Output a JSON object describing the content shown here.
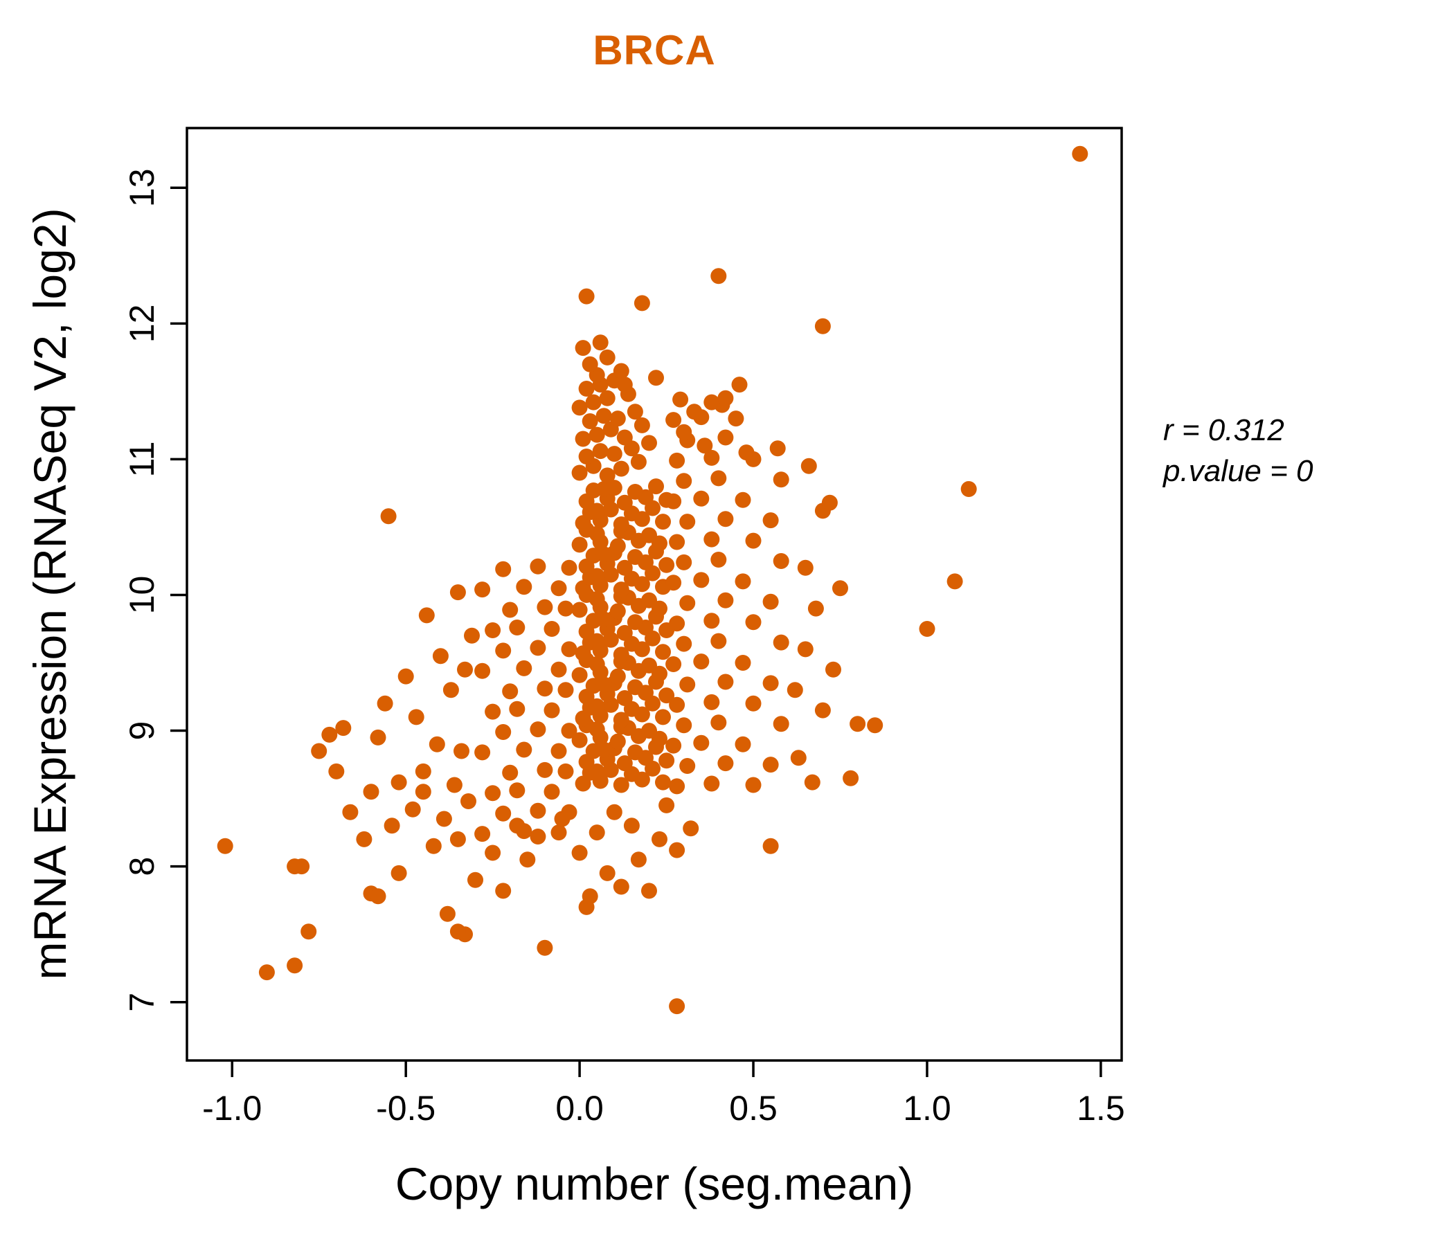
{
  "figure": {
    "title": "BRCA",
    "accent_color": "#D95F02",
    "annotation": {
      "line1": "r = 0.312",
      "line2": "p.value = 0"
    }
  },
  "chart_data": {
    "type": "scatter",
    "title": "BRCA",
    "xlabel": "Copy number (seg.mean)",
    "ylabel": "mRNA Expression (RNASeq V2, log2)",
    "xlim": [
      -1.13,
      1.56
    ],
    "ylim": [
      6.57,
      13.44
    ],
    "x_ticks": [
      -1.0,
      -0.5,
      0.0,
      0.5,
      1.0,
      1.5
    ],
    "y_ticks": [
      7,
      8,
      9,
      10,
      11,
      12,
      13
    ],
    "grid": false,
    "legend": "none",
    "point_color": "#D95F02",
    "stats": {
      "r": 0.312,
      "p_value": 0
    },
    "points": [
      [
        0.01,
        8.61
      ],
      [
        0.06,
        8.63
      ],
      [
        0.12,
        8.6
      ],
      [
        0.18,
        8.64
      ],
      [
        0.24,
        8.62
      ],
      [
        0.03,
        8.69
      ],
      [
        0.09,
        8.71
      ],
      [
        0.15,
        8.68
      ],
      [
        0.21,
        8.72
      ],
      [
        0.05,
        8.7
      ],
      [
        0.02,
        8.77
      ],
      [
        0.08,
        8.79
      ],
      [
        0.13,
        8.76
      ],
      [
        0.19,
        8.8
      ],
      [
        0.25,
        8.78
      ],
      [
        0.04,
        8.85
      ],
      [
        0.1,
        8.87
      ],
      [
        0.16,
        8.84
      ],
      [
        0.22,
        8.88
      ],
      [
        0.07,
        8.86
      ],
      [
        0.0,
        8.93
      ],
      [
        0.06,
        8.95
      ],
      [
        0.11,
        8.92
      ],
      [
        0.17,
        8.96
      ],
      [
        0.23,
        8.94
      ],
      [
        0.05,
        9.01
      ],
      [
        0.12,
        9.03
      ],
      [
        0.2,
        9.0
      ],
      [
        0.02,
        9.04
      ],
      [
        0.14,
        9.02
      ],
      [
        0.01,
        9.09
      ],
      [
        0.06,
        9.11
      ],
      [
        0.12,
        9.08
      ],
      [
        0.18,
        9.12
      ],
      [
        0.24,
        9.1
      ],
      [
        0.03,
        9.17
      ],
      [
        0.09,
        9.19
      ],
      [
        0.15,
        9.16
      ],
      [
        0.21,
        9.2
      ],
      [
        0.05,
        9.18
      ],
      [
        0.02,
        9.25
      ],
      [
        0.08,
        9.27
      ],
      [
        0.13,
        9.24
      ],
      [
        0.19,
        9.28
      ],
      [
        0.25,
        9.26
      ],
      [
        0.04,
        9.33
      ],
      [
        0.1,
        9.35
      ],
      [
        0.16,
        9.32
      ],
      [
        0.22,
        9.36
      ],
      [
        0.07,
        9.34
      ],
      [
        0.0,
        9.41
      ],
      [
        0.06,
        9.43
      ],
      [
        0.11,
        9.4
      ],
      [
        0.17,
        9.44
      ],
      [
        0.23,
        9.42
      ],
      [
        0.05,
        9.49
      ],
      [
        0.12,
        9.51
      ],
      [
        0.2,
        9.48
      ],
      [
        0.02,
        9.52
      ],
      [
        0.14,
        9.5
      ],
      [
        0.01,
        9.57
      ],
      [
        0.06,
        9.59
      ],
      [
        0.12,
        9.56
      ],
      [
        0.18,
        9.6
      ],
      [
        0.24,
        9.58
      ],
      [
        0.03,
        9.65
      ],
      [
        0.09,
        9.67
      ],
      [
        0.15,
        9.64
      ],
      [
        0.21,
        9.68
      ],
      [
        0.05,
        9.66
      ],
      [
        0.02,
        9.73
      ],
      [
        0.08,
        9.75
      ],
      [
        0.13,
        9.72
      ],
      [
        0.19,
        9.76
      ],
      [
        0.25,
        9.74
      ],
      [
        0.04,
        9.81
      ],
      [
        0.1,
        9.83
      ],
      [
        0.16,
        9.8
      ],
      [
        0.22,
        9.84
      ],
      [
        0.07,
        9.82
      ],
      [
        0.0,
        9.89
      ],
      [
        0.06,
        9.91
      ],
      [
        0.11,
        9.88
      ],
      [
        0.17,
        9.92
      ],
      [
        0.23,
        9.9
      ],
      [
        0.05,
        9.97
      ],
      [
        0.12,
        9.99
      ],
      [
        0.2,
        9.96
      ],
      [
        0.02,
        10.0
      ],
      [
        0.14,
        9.98
      ],
      [
        0.01,
        10.05
      ],
      [
        0.06,
        10.07
      ],
      [
        0.12,
        10.04
      ],
      [
        0.18,
        10.08
      ],
      [
        0.24,
        10.06
      ],
      [
        0.03,
        10.13
      ],
      [
        0.09,
        10.15
      ],
      [
        0.15,
        10.12
      ],
      [
        0.21,
        10.16
      ],
      [
        0.05,
        10.14
      ],
      [
        0.02,
        10.21
      ],
      [
        0.08,
        10.23
      ],
      [
        0.13,
        10.2
      ],
      [
        0.19,
        10.24
      ],
      [
        0.25,
        10.22
      ],
      [
        0.04,
        10.29
      ],
      [
        0.1,
        10.31
      ],
      [
        0.16,
        10.28
      ],
      [
        0.22,
        10.32
      ],
      [
        0.07,
        10.3
      ],
      [
        0.0,
        10.37
      ],
      [
        0.06,
        10.39
      ],
      [
        0.11,
        10.36
      ],
      [
        0.17,
        10.4
      ],
      [
        0.23,
        10.38
      ],
      [
        0.05,
        10.45
      ],
      [
        0.12,
        10.47
      ],
      [
        0.2,
        10.44
      ],
      [
        0.02,
        10.48
      ],
      [
        0.14,
        10.46
      ],
      [
        0.01,
        10.53
      ],
      [
        0.06,
        10.55
      ],
      [
        0.12,
        10.52
      ],
      [
        0.18,
        10.56
      ],
      [
        0.24,
        10.54
      ],
      [
        0.03,
        10.61
      ],
      [
        0.09,
        10.63
      ],
      [
        0.15,
        10.6
      ],
      [
        0.21,
        10.64
      ],
      [
        0.05,
        10.62
      ],
      [
        0.02,
        10.69
      ],
      [
        0.08,
        10.71
      ],
      [
        0.13,
        10.68
      ],
      [
        0.19,
        10.72
      ],
      [
        0.25,
        10.7
      ],
      [
        0.04,
        10.77
      ],
      [
        0.1,
        10.79
      ],
      [
        0.16,
        10.76
      ],
      [
        0.22,
        10.8
      ],
      [
        0.07,
        10.78
      ],
      [
        -0.28,
        8.24
      ],
      [
        -0.16,
        8.26
      ],
      [
        -0.06,
        8.25
      ],
      [
        -0.22,
        8.39
      ],
      [
        -0.12,
        8.41
      ],
      [
        -0.03,
        8.4
      ],
      [
        -0.25,
        8.54
      ],
      [
        -0.18,
        8.56
      ],
      [
        -0.08,
        8.55
      ],
      [
        -0.2,
        8.69
      ],
      [
        -0.1,
        8.71
      ],
      [
        -0.04,
        8.7
      ],
      [
        -0.28,
        8.84
      ],
      [
        -0.16,
        8.86
      ],
      [
        -0.06,
        8.85
      ],
      [
        -0.22,
        8.99
      ],
      [
        -0.12,
        9.01
      ],
      [
        -0.03,
        9.0
      ],
      [
        -0.25,
        9.14
      ],
      [
        -0.18,
        9.16
      ],
      [
        -0.08,
        9.15
      ],
      [
        -0.2,
        9.29
      ],
      [
        -0.1,
        9.31
      ],
      [
        -0.04,
        9.3
      ],
      [
        -0.28,
        9.44
      ],
      [
        -0.16,
        9.46
      ],
      [
        -0.06,
        9.45
      ],
      [
        -0.22,
        9.59
      ],
      [
        -0.12,
        9.61
      ],
      [
        -0.03,
        9.6
      ],
      [
        -0.25,
        9.74
      ],
      [
        -0.18,
        9.76
      ],
      [
        -0.08,
        9.75
      ],
      [
        -0.2,
        9.89
      ],
      [
        -0.1,
        9.91
      ],
      [
        -0.04,
        9.9
      ],
      [
        -0.28,
        10.04
      ],
      [
        -0.16,
        10.06
      ],
      [
        -0.06,
        10.05
      ],
      [
        -0.22,
        10.19
      ],
      [
        -0.12,
        10.21
      ],
      [
        -0.03,
        10.2
      ],
      [
        0.28,
        8.59
      ],
      [
        0.38,
        8.61
      ],
      [
        0.5,
        8.6
      ],
      [
        0.31,
        8.74
      ],
      [
        0.42,
        8.76
      ],
      [
        0.55,
        8.75
      ],
      [
        0.27,
        8.89
      ],
      [
        0.35,
        8.91
      ],
      [
        0.47,
        8.9
      ],
      [
        0.3,
        9.04
      ],
      [
        0.4,
        9.06
      ],
      [
        0.58,
        9.05
      ],
      [
        0.28,
        9.19
      ],
      [
        0.38,
        9.21
      ],
      [
        0.5,
        9.2
      ],
      [
        0.31,
        9.34
      ],
      [
        0.42,
        9.36
      ],
      [
        0.55,
        9.35
      ],
      [
        0.27,
        9.49
      ],
      [
        0.35,
        9.51
      ],
      [
        0.47,
        9.5
      ],
      [
        0.3,
        9.64
      ],
      [
        0.4,
        9.66
      ],
      [
        0.58,
        9.65
      ],
      [
        0.28,
        9.79
      ],
      [
        0.38,
        9.81
      ],
      [
        0.5,
        9.8
      ],
      [
        0.31,
        9.94
      ],
      [
        0.42,
        9.96
      ],
      [
        0.55,
        9.95
      ],
      [
        0.27,
        10.09
      ],
      [
        0.35,
        10.11
      ],
      [
        0.47,
        10.1
      ],
      [
        0.3,
        10.24
      ],
      [
        0.4,
        10.26
      ],
      [
        0.58,
        10.25
      ],
      [
        0.28,
        10.39
      ],
      [
        0.38,
        10.41
      ],
      [
        0.5,
        10.4
      ],
      [
        0.31,
        10.54
      ],
      [
        0.42,
        10.56
      ],
      [
        0.55,
        10.55
      ],
      [
        0.27,
        10.69
      ],
      [
        0.35,
        10.71
      ],
      [
        0.47,
        10.7
      ],
      [
        0.3,
        10.84
      ],
      [
        0.4,
        10.86
      ],
      [
        0.58,
        10.85
      ],
      [
        0.28,
        10.99
      ],
      [
        0.38,
        11.01
      ],
      [
        0.5,
        11.0
      ],
      [
        0.31,
        11.14
      ],
      [
        0.42,
        11.16
      ],
      [
        0.27,
        11.29
      ],
      [
        0.35,
        11.31
      ],
      [
        0.29,
        11.44
      ],
      [
        0.41,
        11.4
      ],
      [
        -0.82,
        8.0
      ],
      [
        -0.78,
        7.52
      ],
      [
        -0.75,
        8.85
      ],
      [
        -0.72,
        8.97
      ],
      [
        -0.7,
        8.7
      ],
      [
        -0.68,
        9.02
      ],
      [
        -0.66,
        8.4
      ],
      [
        -0.62,
        8.2
      ],
      [
        -0.6,
        7.8
      ],
      [
        -0.58,
        8.95
      ],
      [
        -0.56,
        9.2
      ],
      [
        -0.55,
        10.58
      ],
      [
        -0.54,
        8.3
      ],
      [
        -0.52,
        8.62
      ],
      [
        -0.5,
        9.4
      ],
      [
        -0.48,
        8.42
      ],
      [
        -0.47,
        9.1
      ],
      [
        -0.45,
        8.55
      ],
      [
        -0.44,
        9.85
      ],
      [
        -0.42,
        8.15
      ],
      [
        -0.41,
        8.9
      ],
      [
        -0.4,
        9.55
      ],
      [
        -0.39,
        8.35
      ],
      [
        -0.38,
        7.65
      ],
      [
        -0.37,
        9.3
      ],
      [
        -0.36,
        8.6
      ],
      [
        -0.35,
        10.02
      ],
      [
        -0.34,
        8.85
      ],
      [
        -0.33,
        9.45
      ],
      [
        -0.33,
        7.5
      ],
      [
        -0.32,
        8.48
      ],
      [
        -0.31,
        9.7
      ],
      [
        -0.45,
        8.7
      ],
      [
        -0.52,
        7.95
      ],
      [
        -0.6,
        8.55
      ],
      [
        -0.35,
        8.2
      ],
      [
        0.0,
        10.9
      ],
      [
        0.04,
        10.95
      ],
      [
        0.08,
        10.88
      ],
      [
        0.12,
        10.93
      ],
      [
        0.17,
        10.98
      ],
      [
        0.02,
        11.02
      ],
      [
        0.06,
        11.06
      ],
      [
        0.1,
        11.04
      ],
      [
        0.15,
        11.08
      ],
      [
        0.2,
        11.12
      ],
      [
        0.01,
        11.15
      ],
      [
        0.05,
        11.18
      ],
      [
        0.09,
        11.22
      ],
      [
        0.13,
        11.16
      ],
      [
        0.18,
        11.25
      ],
      [
        0.03,
        11.28
      ],
      [
        0.07,
        11.32
      ],
      [
        0.11,
        11.3
      ],
      [
        0.16,
        11.35
      ],
      [
        0.0,
        11.38
      ],
      [
        0.04,
        11.42
      ],
      [
        0.08,
        11.45
      ],
      [
        0.14,
        11.48
      ],
      [
        0.02,
        11.52
      ],
      [
        0.06,
        11.55
      ],
      [
        0.1,
        11.58
      ],
      [
        0.05,
        11.62
      ],
      [
        0.12,
        11.65
      ],
      [
        0.03,
        11.7
      ],
      [
        0.08,
        11.75
      ],
      [
        0.01,
        11.82
      ],
      [
        0.06,
        11.86
      ],
      [
        0.22,
        11.6
      ],
      [
        0.13,
        11.55
      ],
      [
        0.33,
        11.35
      ],
      [
        0.38,
        11.42
      ],
      [
        0.45,
        11.3
      ],
      [
        0.3,
        11.2
      ],
      [
        0.36,
        11.1
      ],
      [
        0.42,
        11.45
      ],
      [
        0.48,
        11.05
      ],
      [
        0.62,
        9.3
      ],
      [
        0.63,
        8.8
      ],
      [
        0.65,
        9.6
      ],
      [
        0.65,
        10.2
      ],
      [
        0.67,
        8.62
      ],
      [
        0.68,
        9.9
      ],
      [
        0.7,
        10.62
      ],
      [
        0.7,
        9.15
      ],
      [
        0.72,
        10.68
      ],
      [
        0.73,
        9.45
      ],
      [
        0.75,
        10.05
      ],
      [
        0.78,
        8.65
      ],
      [
        0.8,
        9.05
      ],
      [
        0.85,
        9.04
      ],
      [
        0.66,
        10.95
      ],
      [
        0.57,
        11.08
      ],
      [
        -0.58,
        7.78
      ],
      [
        -0.3,
        7.9
      ],
      [
        -0.25,
        8.1
      ],
      [
        -0.22,
        7.82
      ],
      [
        -0.18,
        8.3
      ],
      [
        -0.15,
        8.05
      ],
      [
        -0.12,
        8.22
      ],
      [
        -0.35,
        7.52
      ],
      [
        -0.1,
        7.4
      ],
      [
        -0.05,
        8.35
      ],
      [
        0.0,
        8.1
      ],
      [
        0.02,
        7.7
      ],
      [
        0.03,
        7.78
      ],
      [
        0.05,
        8.25
      ],
      [
        0.08,
        7.95
      ],
      [
        0.1,
        8.4
      ],
      [
        0.12,
        7.85
      ],
      [
        0.15,
        8.3
      ],
      [
        0.17,
        8.05
      ],
      [
        0.2,
        7.82
      ],
      [
        0.23,
        8.2
      ],
      [
        0.25,
        8.45
      ],
      [
        0.28,
        8.12
      ],
      [
        0.32,
        8.28
      ],
      [
        1.44,
        13.25
      ],
      [
        -1.02,
        8.15
      ],
      [
        -0.9,
        7.22
      ],
      [
        -0.82,
        7.27
      ],
      [
        -0.8,
        8.0
      ],
      [
        0.28,
        6.97
      ],
      [
        0.4,
        12.35
      ],
      [
        0.18,
        12.15
      ],
      [
        0.02,
        12.2
      ],
      [
        0.7,
        11.98
      ],
      [
        1.12,
        10.78
      ],
      [
        1.08,
        10.1
      ],
      [
        1.0,
        9.75
      ],
      [
        0.55,
        8.15
      ],
      [
        0.46,
        11.55
      ]
    ]
  }
}
